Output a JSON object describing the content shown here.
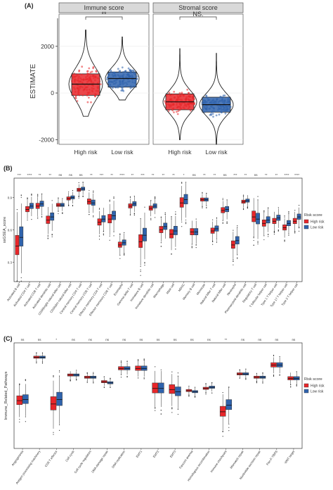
{
  "panels": {
    "A": {
      "tag": "(A)"
    },
    "B": {
      "tag": "(B)"
    },
    "C": {
      "tag": "(C)"
    }
  },
  "colors": {
    "high_risk": "#e8262a",
    "low_risk": "#2f63ad",
    "strip": "#d9d9d9"
  },
  "chart_data": [
    {
      "type": "violin",
      "panel": "A",
      "facets": [
        "Immune score",
        "Stromal score"
      ],
      "ylabel": "ESTIMATE",
      "ylim": [
        -2200,
        3200
      ],
      "yticks": [
        -2000,
        0,
        2000
      ],
      "categories": [
        "High risk",
        "Low risk"
      ],
      "significance": [
        "**",
        "NS."
      ],
      "groups": [
        {
          "facet": "Immune score",
          "group": "High risk",
          "median": 380,
          "q1": -100,
          "q3": 820,
          "min": -1000,
          "max": 2700
        },
        {
          "facet": "Immune score",
          "group": "Low risk",
          "median": 620,
          "q1": 250,
          "q3": 900,
          "min": -300,
          "max": 2400
        },
        {
          "facet": "Stromal score",
          "group": "High risk",
          "median": -380,
          "q1": -720,
          "q3": -40,
          "min": -2000,
          "max": 1900
        },
        {
          "facet": "Stromal score",
          "group": "Low risk",
          "median": -500,
          "q1": -820,
          "q3": -180,
          "min": -2200,
          "max": 1700
        }
      ]
    },
    {
      "type": "box",
      "panel": "B",
      "ylabel": "ssGSEA_score",
      "ylim": [
        0.12,
        1.08
      ],
      "yticks": [
        0.3,
        0.6,
        0.9,
        1.2
      ],
      "legend_title": "Risk score",
      "legend_items": [
        "High risk",
        "Low risk"
      ],
      "categories": [
        "Activated B cell",
        "Activated CD4 T cell",
        "Activated CD8 T cell",
        "Activated dendritic cell",
        "CD56bright natural killer cell",
        "CD56dim natural killer cell",
        "Central memory CD4 T cell",
        "Central memory CD8 T cell",
        "Effector memeory CD4 T cell",
        "Effector memeory CD8 T cell",
        "Eosinophil",
        "Gamma delta T cell",
        "Immature B cell",
        "Immature dendritic cell",
        "Macrophage",
        "Mast cell",
        "MDSC",
        "Memory B cell",
        "Monocyte",
        "Natural killer T cell",
        "Natural killer cell",
        "Neutrophil",
        "Plasmacytoid dendritic cell",
        "Regulatory T cell",
        "T follicular helper cell",
        "Type 1 T helper cell",
        "Type 17 T helper cell",
        "Type 2 T helper cell"
      ],
      "significance": [
        "***",
        "****",
        "**",
        "**",
        "ns",
        "ns",
        "ns",
        "**",
        "***",
        "**",
        "****",
        "**",
        "***",
        "**",
        "**",
        "**",
        "*",
        "ns",
        "**",
        "**",
        "ns",
        "***",
        "**",
        "ns",
        "**",
        "**",
        "****",
        "****"
      ],
      "series": [
        {
          "name": "High risk",
          "medians": [
            0.45,
            0.79,
            0.82,
            0.69,
            0.83,
            0.89,
            0.97,
            0.86,
            0.67,
            0.7,
            0.46,
            0.82,
            0.49,
            0.8,
            0.6,
            0.56,
            0.85,
            0.58,
            0.88,
            0.59,
            0.78,
            0.46,
            0.86,
            0.72,
            0.66,
            0.68,
            0.62,
            0.68
          ]
        },
        {
          "name": "Low risk",
          "medians": [
            0.53,
            0.82,
            0.84,
            0.72,
            0.83,
            0.9,
            0.98,
            0.85,
            0.7,
            0.73,
            0.48,
            0.84,
            0.55,
            0.82,
            0.63,
            0.59,
            0.88,
            0.58,
            0.88,
            0.61,
            0.79,
            0.5,
            0.87,
            0.7,
            0.69,
            0.71,
            0.66,
            0.72
          ]
        }
      ]
    },
    {
      "type": "box",
      "panel": "C",
      "ylabel": "Immune_Related_Pathways",
      "ylim": [
        0.4,
        1.35
      ],
      "legend_title": "Risk score",
      "legend_items": [
        "High risk",
        "Low risk"
      ],
      "categories": [
        "Angiogenesis",
        "Antigen processing machinery",
        "CD8 T effector",
        "Cell cycle",
        "Cell cycle regulators",
        "DNA damage repair",
        "DNA replication",
        "EMT1",
        "EMT2",
        "EMT3",
        "Fanconi anemia",
        "Homologous recombination",
        "Immune checkpoint",
        "Mismatch repair",
        "Nucleotide excision repair",
        "Pan-F-TBRS",
        "WNT target"
      ],
      "significance": [
        "ns",
        "ns",
        "*",
        "ns",
        "ns",
        "ns",
        "ns",
        "ns",
        "ns",
        "ns",
        "ns",
        "ns",
        "**",
        "ns",
        "ns",
        "ns",
        "ns"
      ],
      "series": [
        {
          "name": "High risk",
          "medians": [
            0.83,
            1.22,
            0.8,
            1.06,
            1.04,
            1.0,
            1.12,
            1.12,
            0.94,
            0.93,
            0.92,
            0.94,
            0.73,
            1.07,
            1.04,
            1.15,
            1.03
          ]
        },
        {
          "name": "Low risk",
          "medians": [
            0.84,
            1.22,
            0.84,
            1.06,
            1.04,
            0.99,
            1.12,
            1.12,
            0.94,
            0.91,
            0.91,
            0.95,
            0.79,
            1.07,
            1.04,
            1.15,
            1.03
          ]
        }
      ]
    }
  ]
}
